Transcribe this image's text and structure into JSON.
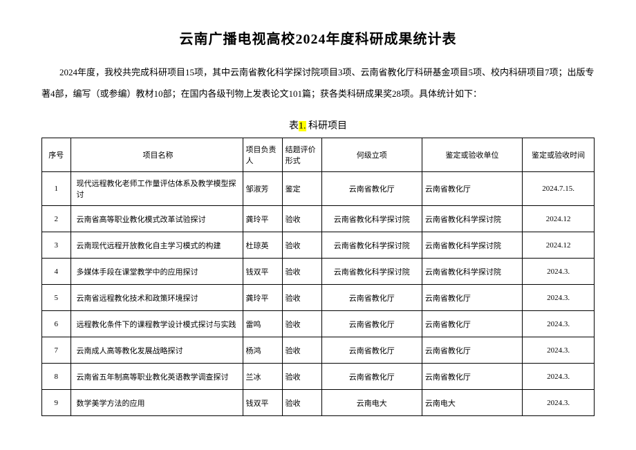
{
  "title": "云南广播电视高校2024年度科研成果统计表",
  "intro": "2024年度，我校共完成科研项目15项，其中云南省教化科学探讨院项目3项、云南省教化厅科研基金项目5项、校内科研项目7项；出版专著4部，编写（或参编）教材10部；在国内各级刊物上发表论文101篇；获各类科研成果奖28项。具体统计如下：",
  "table_caption_prefix": "表",
  "table_caption_highlight": "1.",
  "table_caption_suffix": " 科研项目",
  "columns": {
    "seq": "序号",
    "name": "项目名称",
    "person": "项目负责人",
    "eval": "结题评价形式",
    "level": "何级立项",
    "unit": "鉴定或验收单位",
    "date": "鉴定或验收时间"
  },
  "rows": [
    {
      "seq": "1",
      "name": "现代远程教化老师工作量评估体系及教学模型探讨",
      "person": "邹淑芳",
      "eval": "鉴定",
      "level": "云南省教化厅",
      "unit": "云南省教化厅",
      "date": "2024.7.15."
    },
    {
      "seq": "2",
      "name": "云南省高等职业教化模式改革试验探讨",
      "person": "龚玲平",
      "eval": "验收",
      "level": "云南省教化科学探讨院",
      "unit": "云南省教化科学探讨院",
      "date": "2024.12"
    },
    {
      "seq": "3",
      "name": "云南现代远程开放教化自主学习模式的构建",
      "person": "杜琼英",
      "eval": "验收",
      "level": "云南省教化科学探讨院",
      "unit": "云南省教化科学探讨院",
      "date": "2024.12"
    },
    {
      "seq": "4",
      "name": "多媒体手段在课堂教学中的应用探讨",
      "person": "钱双平",
      "eval": "验收",
      "level": "云南省教化科学探讨院",
      "unit": "云南省教化科学探讨院",
      "date": "2024.3."
    },
    {
      "seq": "5",
      "name": "云南省远程教化技术和政策环境探讨",
      "person": "龚玲平",
      "eval": "验收",
      "level": "云南省教化厅",
      "unit": "云南省教化厅",
      "date": "2024.3."
    },
    {
      "seq": "6",
      "name": "远程教化条件下的课程教学设计模式探讨与实践",
      "person": "雷鸣",
      "eval": "验收",
      "level": "云南省教化厅",
      "unit": "云南省教化厅",
      "date": "2024.3."
    },
    {
      "seq": "7",
      "name": "云南成人高等教化发展战略探讨",
      "person": "杨鸿",
      "eval": "验收",
      "level": "云南省教化厅",
      "unit": "云南省教化厅",
      "date": "2024.3."
    },
    {
      "seq": "8",
      "name": "云南省五年制高等职业教化英语教学调查探讨",
      "person": "兰冰",
      "eval": "验收",
      "level": "云南省教化厅",
      "unit": "云南省教化厅",
      "date": "2024.3."
    },
    {
      "seq": "9",
      "name": "数学美学方法的应用",
      "person": "钱双平",
      "eval": "验收",
      "level": "云南电大",
      "unit": "云南电大",
      "date": "2024.3."
    }
  ]
}
